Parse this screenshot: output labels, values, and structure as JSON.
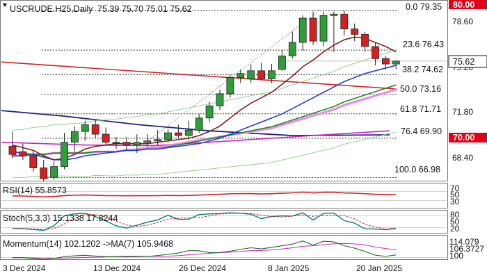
{
  "header": {
    "symbol_text": "USCRUDE.H25,Daily",
    "ohlc_text": "75.39 75.70 75.01 75.62"
  },
  "price_axis": {
    "ticks": [
      "78.60",
      "75.20",
      "71.80",
      "68.40"
    ],
    "badge_top": "80.00",
    "badge_mid": "70.00",
    "current_price": "75.62",
    "badge_color": "#e0001a"
  },
  "fib_levels": [
    {
      "label": "0.0 79.35",
      "value": 79.35
    },
    {
      "label": "23.6 76.43",
      "value": 76.43
    },
    {
      "label": "38.2 74.62",
      "value": 74.62
    },
    {
      "label": "50.0 73.16",
      "value": 73.16
    },
    {
      "label": "61.8 71.71",
      "value": 71.71
    },
    {
      "label": "76.4 69.90",
      "value": 69.9
    },
    {
      "label": "100.0 66.98",
      "value": 66.98
    }
  ],
  "dates": [
    "3 Dec 2024",
    "13 Dec 2024",
    "26 Dec 2024",
    "8 Jan 2025",
    "20 Jan 2025"
  ],
  "panels": {
    "rsi": {
      "label": "RSI(14) 55.8573",
      "ticks": [
        "70",
        "50",
        "30"
      ]
    },
    "stoch": {
      "label": "Stoch(5,3,3) 15.1338 17.8244",
      "ticks": [
        "80",
        "50",
        "20"
      ]
    },
    "momentum": {
      "label": "Momentum(14) 102.1202  ->MA(7) 105.9468",
      "ticks": [
        "114.079",
        "106.3727",
        "100"
      ]
    }
  },
  "chart_data": {
    "type": "candlestick",
    "symbol": "USCRUDE.H25",
    "timeframe": "Daily",
    "x": [
      "2024-12-02",
      "2024-12-03",
      "2024-12-04",
      "2024-12-05",
      "2024-12-06",
      "2024-12-09",
      "2024-12-10",
      "2024-12-11",
      "2024-12-12",
      "2024-12-13",
      "2024-12-16",
      "2024-12-17",
      "2024-12-18",
      "2024-12-19",
      "2024-12-20",
      "2024-12-23",
      "2024-12-24",
      "2024-12-26",
      "2024-12-27",
      "2024-12-30",
      "2024-12-31",
      "2025-01-02",
      "2025-01-03",
      "2025-01-06",
      "2025-01-07",
      "2025-01-08",
      "2025-01-09",
      "2025-01-10",
      "2025-01-13",
      "2025-01-14",
      "2025-01-15",
      "2025-01-16",
      "2025-01-17",
      "2025-01-20",
      "2025-01-21",
      "2025-01-22",
      "2025-01-23",
      "2025-01-24"
    ],
    "open": [
      69.3,
      68.9,
      68.6,
      67.7,
      67.0,
      67.8,
      69.6,
      70.4,
      70.9,
      70.2,
      69.6,
      69.6,
      69.4,
      69.6,
      69.7,
      69.8,
      70.3,
      70.1,
      70.5,
      71.4,
      72.3,
      73.2,
      74.4,
      74.3,
      74.9,
      74.3,
      75.0,
      76.0,
      77.0,
      78.8,
      77.1,
      79.0,
      79.1,
      78.0,
      77.6,
      76.7,
      75.8,
      75.4
    ],
    "high": [
      70.4,
      69.5,
      69.0,
      68.3,
      68.2,
      70.3,
      70.8,
      71.2,
      71.3,
      70.7,
      70.0,
      70.0,
      70.2,
      70.2,
      70.5,
      70.6,
      70.9,
      71.2,
      71.7,
      72.6,
      73.5,
      74.6,
      75.0,
      75.4,
      75.5,
      75.4,
      76.5,
      77.8,
      79.0,
      79.3,
      79.3,
      79.3,
      79.35,
      78.4,
      77.8,
      77.0,
      76.0,
      75.7
    ],
    "low": [
      68.4,
      68.3,
      67.4,
      66.7,
      66.8,
      67.6,
      68.9,
      69.7,
      69.9,
      69.4,
      69.1,
      69.0,
      68.8,
      69.3,
      69.4,
      69.6,
      69.9,
      69.8,
      70.3,
      71.1,
      72.0,
      72.9,
      74.0,
      74.0,
      74.2,
      74.0,
      74.9,
      75.8,
      76.4,
      76.8,
      76.7,
      76.3,
      77.5,
      77.1,
      76.3,
      75.3,
      75.0,
      75.01
    ],
    "close": [
      68.7,
      68.6,
      67.7,
      66.9,
      67.8,
      69.6,
      70.4,
      70.9,
      70.2,
      69.6,
      69.6,
      69.4,
      69.6,
      69.7,
      69.8,
      70.3,
      70.1,
      70.5,
      71.4,
      72.3,
      73.2,
      74.4,
      74.7,
      74.9,
      74.3,
      74.9,
      76.0,
      77.0,
      78.8,
      77.1,
      79.0,
      79.1,
      78.0,
      77.6,
      76.7,
      75.8,
      75.4,
      75.62
    ],
    "ema_fast": [
      69.4,
      69.2,
      69.0,
      68.6,
      68.3,
      68.4,
      68.7,
      69.1,
      69.3,
      69.4,
      69.5,
      69.5,
      69.5,
      69.5,
      69.6,
      69.7,
      69.8,
      69.9,
      70.1,
      70.4,
      70.8,
      71.4,
      72.0,
      72.5,
      72.9,
      73.3,
      73.9,
      74.5,
      75.2,
      75.7,
      76.3,
      76.8,
      77.2,
      77.4,
      77.3,
      77.0,
      76.7,
      76.3
    ],
    "ema_mid": [
      68.9,
      68.8,
      68.7,
      68.5,
      68.3,
      68.3,
      68.4,
      68.6,
      68.7,
      68.8,
      68.9,
      69.0,
      69.0,
      69.1,
      69.1,
      69.2,
      69.3,
      69.4,
      69.5,
      69.7,
      69.9,
      70.2,
      70.5,
      70.8,
      71.1,
      71.4,
      71.7,
      72.1,
      72.5,
      72.9,
      73.3,
      73.7,
      74.1,
      74.4,
      74.7,
      74.9,
      75.1,
      75.3
    ],
    "sma_slow": [
      68.6,
      68.6,
      68.7,
      68.7,
      68.8,
      68.8,
      68.8,
      68.8,
      68.9,
      68.9,
      68.9,
      69.0,
      69.0,
      69.1,
      69.1,
      69.2,
      69.3,
      69.4,
      69.5,
      69.6,
      69.7,
      69.8,
      69.9,
      70.0,
      70.1,
      70.2,
      70.4,
      70.6,
      70.8,
      71.0,
      71.2,
      71.4,
      71.7,
      71.9,
      72.1,
      72.3,
      72.5,
      72.7
    ],
    "xaxis_labels": [
      "3 Dec 2024",
      "13 Dec 2024",
      "26 Dec 2024",
      "8 Jan 2025",
      "20 Jan 2025"
    ],
    "ylim": [
      66.7,
      80.3
    ],
    "fib_levels": [
      79.35,
      76.43,
      74.62,
      73.16,
      71.71,
      69.9,
      66.98
    ],
    "price_now": 75.62,
    "indicators": {
      "rsi": {
        "period": 14,
        "value": 55.8573,
        "levels": [
          70,
          50,
          30
        ]
      },
      "stoch": {
        "k": 15.1338,
        "d": 17.8244,
        "levels": [
          80,
          50,
          20
        ]
      },
      "momentum": {
        "period": 14,
        "value": 102.1202,
        "ma_period": 7,
        "ma_value": 105.9468
      }
    },
    "colors": {
      "up": "#2e9e3a",
      "down": "#d42020",
      "badge": "#e0001a"
    }
  }
}
